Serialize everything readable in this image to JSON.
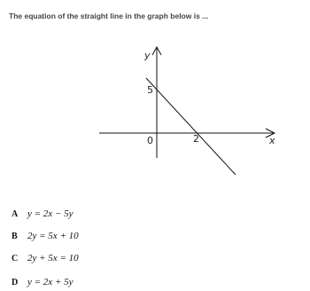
{
  "question": "The equation of the straight line in the graph below is ...",
  "graph": {
    "y_label": "y",
    "x_label": "x",
    "y_intercept": "5",
    "origin": "0",
    "x_intercept": "2"
  },
  "options": [
    {
      "letter": "A",
      "text": "y = 2x − 5y"
    },
    {
      "letter": "B",
      "text": "2y = 5x + 10"
    },
    {
      "letter": "C",
      "text": "2y + 5x = 10"
    },
    {
      "letter": "D",
      "text": "y = 2x + 5y"
    }
  ]
}
